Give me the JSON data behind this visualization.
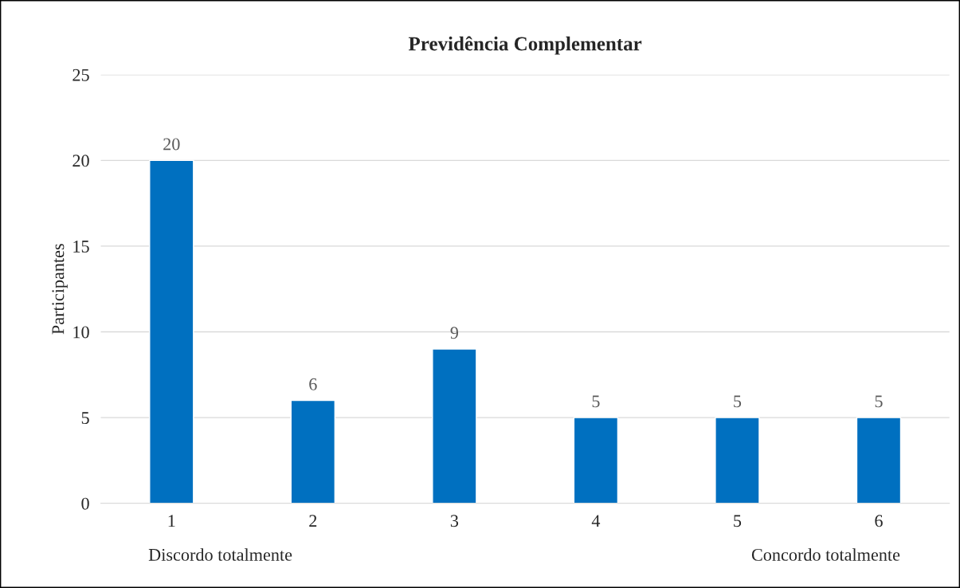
{
  "chart_data": {
    "type": "bar",
    "title": "Previdência Complementar",
    "ylabel": "Participantes",
    "categories": [
      "1",
      "2",
      "3",
      "4",
      "5",
      "6"
    ],
    "values": [
      20,
      6,
      9,
      5,
      5,
      5
    ],
    "color": "#0070c0",
    "ylim": [
      0,
      25
    ],
    "yticks": [
      0,
      5,
      10,
      15,
      20,
      25
    ],
    "grid": "y",
    "data_labels": true,
    "legend": false,
    "annotations": [
      "Discordo totalmente",
      "Concordo totalmente"
    ]
  }
}
